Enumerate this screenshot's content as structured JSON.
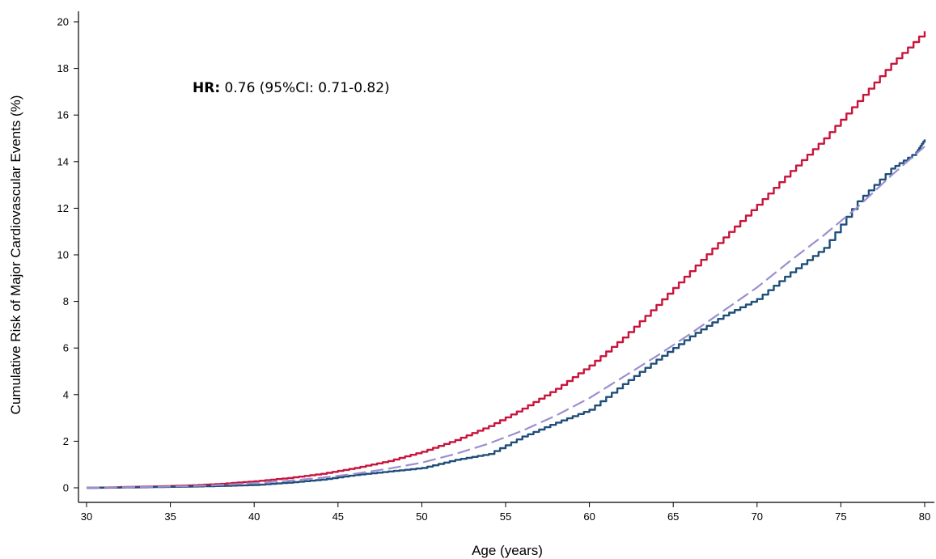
{
  "chart_data": {
    "type": "line",
    "title": "",
    "xlabel": "Age (years)",
    "ylabel": "Cumulative Risk of Major Cardiovascular Events (%)",
    "xlim": [
      30,
      80
    ],
    "ylim": [
      0,
      20
    ],
    "xticks": [
      30,
      35,
      40,
      45,
      50,
      55,
      60,
      65,
      70,
      75,
      80
    ],
    "yticks": [
      0,
      2,
      4,
      6,
      8,
      10,
      12,
      14,
      16,
      18,
      20
    ],
    "grid": false,
    "legend": null,
    "annotation": {
      "bold": "HR:",
      "rest": " 0.76 (95%CI: 0.71-0.82)"
    },
    "series": [
      {
        "color": "#c8143c",
        "style": "solid",
        "x": [
          30,
          32,
          34,
          36,
          38,
          40,
          42,
          44,
          46,
          48,
          50,
          52,
          54,
          56,
          58,
          60,
          62,
          64,
          66,
          68,
          70,
          72,
          74,
          76,
          78,
          80
        ],
        "y": [
          0.0,
          0.03,
          0.06,
          0.1,
          0.17,
          0.28,
          0.42,
          0.6,
          0.85,
          1.15,
          1.55,
          2.05,
          2.65,
          3.4,
          4.25,
          5.25,
          6.45,
          7.85,
          9.3,
          10.75,
          12.15,
          13.6,
          15.0,
          16.6,
          18.2,
          19.6
        ]
      },
      {
        "color": "#1f4e79",
        "style": "solid",
        "x": [
          30,
          32,
          34,
          36,
          38,
          40,
          42,
          44,
          46,
          48,
          50,
          52,
          54,
          56,
          58,
          60,
          62,
          64,
          66,
          68,
          70,
          72,
          74,
          76,
          78,
          79.5,
          80
        ],
        "y": [
          0.0,
          0.01,
          0.03,
          0.05,
          0.08,
          0.12,
          0.22,
          0.35,
          0.55,
          0.7,
          0.85,
          1.2,
          1.45,
          2.2,
          2.8,
          3.35,
          4.45,
          5.5,
          6.5,
          7.4,
          8.1,
          9.25,
          10.3,
          12.3,
          13.7,
          14.4,
          14.95
        ]
      },
      {
        "color": "#9b8fd0",
        "style": "dashed",
        "x": [
          30,
          32,
          34,
          36,
          38,
          40,
          42,
          44,
          46,
          48,
          50,
          52,
          54,
          56,
          58,
          60,
          62,
          64,
          66,
          68,
          70,
          72,
          74,
          76,
          78,
          80
        ],
        "y": [
          0.0,
          0.02,
          0.04,
          0.07,
          0.12,
          0.2,
          0.3,
          0.43,
          0.6,
          0.82,
          1.08,
          1.45,
          1.9,
          2.45,
          3.1,
          3.85,
          4.75,
          5.65,
          6.6,
          7.6,
          8.6,
          9.75,
          10.85,
          12.05,
          13.4,
          14.65
        ]
      }
    ]
  }
}
